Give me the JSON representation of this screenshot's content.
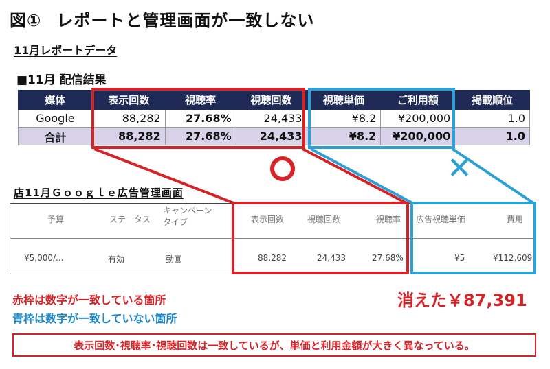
{
  "title": {
    "number": "図①",
    "text": "レポートと管理画面が一致しない"
  },
  "report_label": "11月レポートデータ",
  "delivery_label": "■11月 配信結果",
  "report_table": {
    "headers": [
      "媒体",
      "表示回数",
      "視聴率",
      "視聴回数",
      "視聴単価",
      "ご利用額",
      "掲載順位"
    ],
    "rows": [
      [
        "Google",
        "88,282",
        "27.68%",
        "24,433",
        "¥8.2",
        "¥200,000",
        "1.0"
      ],
      [
        "合計",
        "88,282",
        "27.68%",
        "24,433",
        "¥8.2",
        "¥200,000",
        "1.0"
      ]
    ]
  },
  "admin_label": "店11月Ｇｏｏｇｌｅ広告管理画面",
  "admin_table": {
    "headers": [
      "予算",
      "ステータス",
      "キャンペーン\nタイプ",
      "表示回数",
      "視聴回数",
      "視聴率",
      "広告視聴単価",
      "費用"
    ],
    "row": [
      "¥5,000/...",
      "有効",
      "動画",
      "88,282",
      "24,433",
      "27.68%",
      "¥5",
      "¥112,609"
    ]
  },
  "marks": {
    "match": "〇",
    "mismatch": "✕"
  },
  "legend": {
    "red": "赤枠は数字が一致している箇所",
    "blue": "青枠は数字が一致していない箇所"
  },
  "vanished": "消えた￥87,391",
  "note": "表示回数･視聴率･視聴回数は一致しているが、単価と利用金額が大きく異なっている。",
  "colors": {
    "red": "#d52428",
    "blue": "#2da1d6",
    "navy": "#1f2a57",
    "lavender": "#d9d3ea"
  }
}
